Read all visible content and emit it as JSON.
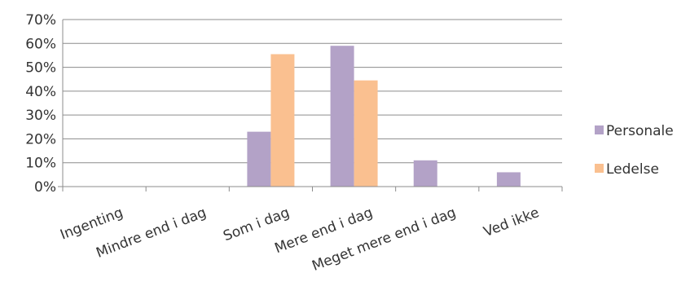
{
  "chart_data": {
    "type": "bar",
    "categories": [
      "Ingenting",
      "Mindre end i dag",
      "Som i dag",
      "Mere end i dag",
      "Meget mere end i dag",
      "Ved ikke"
    ],
    "series": [
      {
        "name": "Personale",
        "color": "#b3a2c7",
        "values": [
          0,
          0,
          23,
          59,
          11,
          6
        ]
      },
      {
        "name": "Ledelse",
        "color": "#fac090",
        "values": [
          0,
          0,
          55.5,
          44.5,
          0,
          0
        ]
      }
    ],
    "y_ticks": [
      "0%",
      "10%",
      "20%",
      "30%",
      "40%",
      "50%",
      "60%",
      "70%"
    ],
    "ylim": [
      0,
      70
    ],
    "y_unit": "%",
    "grid": true,
    "legend_position": "right",
    "title": "",
    "xlabel": "",
    "ylabel": ""
  }
}
